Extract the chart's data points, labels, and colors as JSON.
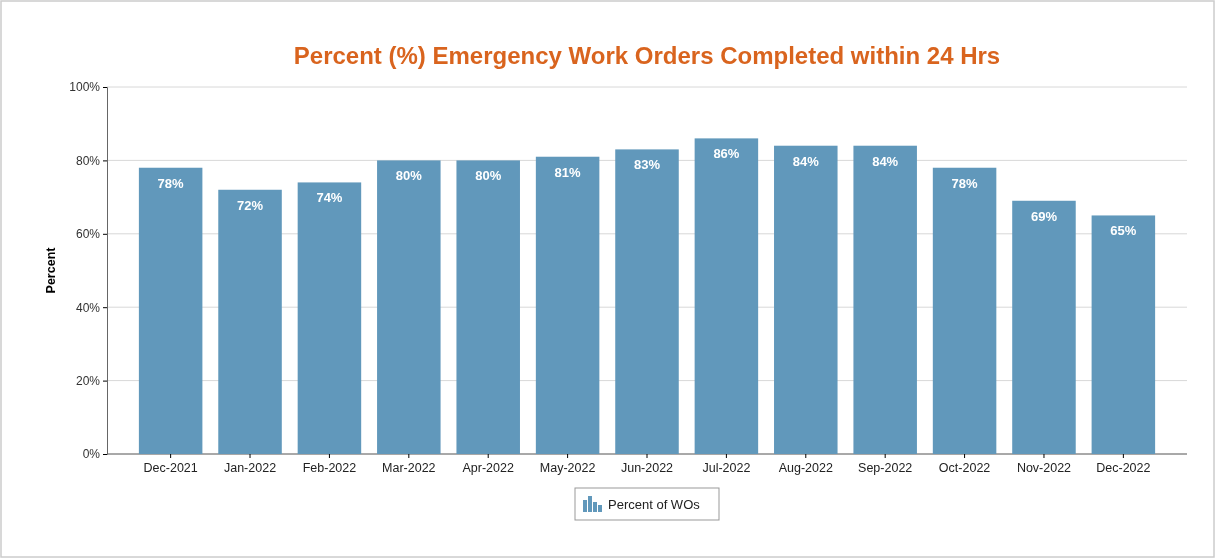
{
  "chart_data": {
    "type": "bar",
    "title": "Percent (%) Emergency Work Orders Completed within 24 Hrs",
    "ylabel": "Percent",
    "categories": [
      "Dec-2021",
      "Jan-2022",
      "Feb-2022",
      "Mar-2022",
      "Apr-2022",
      "May-2022",
      "Jun-2022",
      "Jul-2022",
      "Aug-2022",
      "Sep-2022",
      "Oct-2022",
      "Nov-2022",
      "Dec-2022"
    ],
    "series": [
      {
        "name": "Percent of WOs",
        "color": "#6198bb",
        "values": [
          78,
          72,
          74,
          80,
          80,
          81,
          83,
          86,
          84,
          84,
          78,
          69,
          65
        ],
        "value_labels": [
          "78%",
          "72%",
          "74%",
          "80%",
          "80%",
          "81%",
          "83%",
          "86%",
          "84%",
          "84%",
          "78%",
          "69%",
          "65%"
        ]
      }
    ],
    "ylim": [
      0,
      100
    ],
    "yticks": [
      {
        "value": 0,
        "label": "0%"
      },
      {
        "value": 20,
        "label": "20%"
      },
      {
        "value": 40,
        "label": "40%"
      },
      {
        "value": 60,
        "label": "60%"
      },
      {
        "value": 80,
        "label": "80%"
      },
      {
        "value": 100,
        "label": "100%"
      }
    ],
    "grid": "y",
    "legend": "bottom"
  }
}
